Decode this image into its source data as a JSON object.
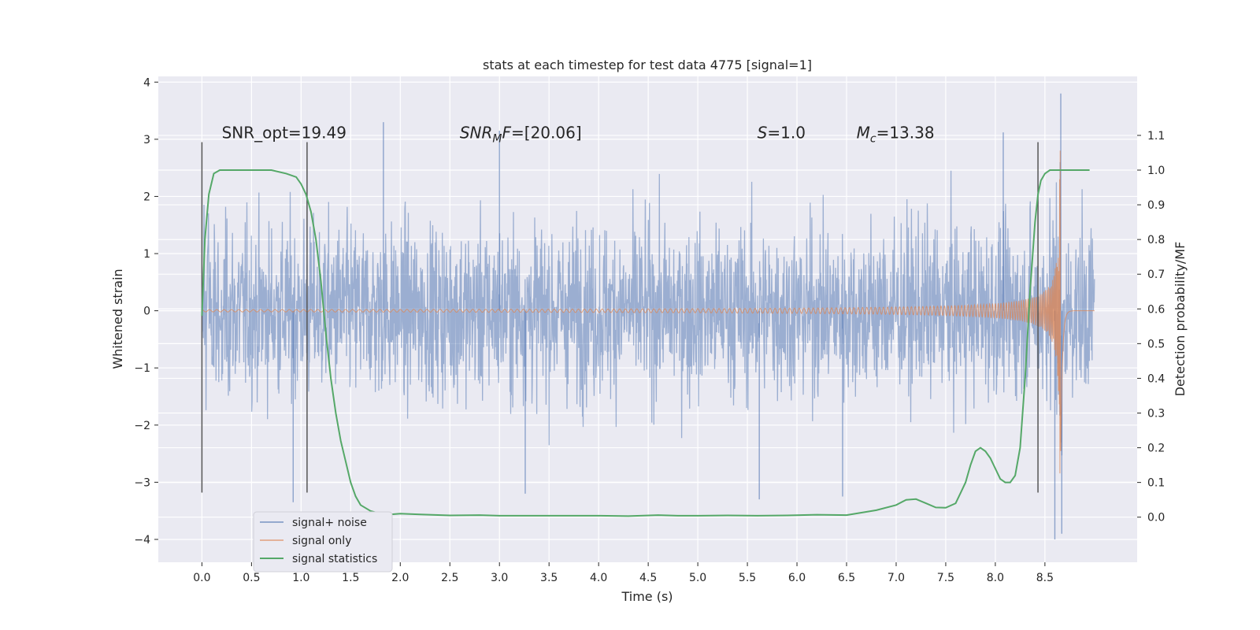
{
  "chart_data": {
    "type": "line",
    "title": "stats at each timestep for test data 4775 [signal=1]",
    "xlabel": "Time (s)",
    "ylabel": "Whitened strain",
    "y2label": "Detection probability/MF",
    "xlim": [
      -0.44,
      9.43
    ],
    "ylim": [
      -4.4,
      4.1
    ],
    "y2lim": [
      -0.13,
      1.27
    ],
    "x_ticks": [
      0.0,
      0.5,
      1.0,
      1.5,
      2.0,
      2.5,
      3.0,
      3.5,
      4.0,
      4.5,
      5.0,
      5.5,
      6.0,
      6.5,
      7.0,
      7.5,
      8.0,
      8.5
    ],
    "x_tick_labels": [
      "0.0",
      "0.5",
      "1.0",
      "1.5",
      "2.0",
      "2.5",
      "3.0",
      "3.5",
      "4.0",
      "4.5",
      "5.0",
      "5.5",
      "6.0",
      "6.5",
      "7.0",
      "7.5",
      "8.0",
      "8.5"
    ],
    "y_ticks": [
      -4,
      -3,
      -2,
      -1,
      0,
      1,
      2,
      3,
      4
    ],
    "y_tick_labels": [
      "−4",
      "−3",
      "−2",
      "−1",
      "0",
      "1",
      "2",
      "3",
      "4"
    ],
    "y2_ticks": [
      0.0,
      0.1,
      0.2,
      0.3,
      0.4,
      0.5,
      0.6,
      0.7,
      0.8,
      0.9,
      1.0,
      1.1
    ],
    "y2_tick_labels": [
      "0.0",
      "0.1",
      "0.2",
      "0.3",
      "0.4",
      "0.5",
      "0.6",
      "0.7",
      "0.8",
      "0.9",
      "1.0",
      "1.1"
    ],
    "annotations": [
      {
        "name": "snr-opt",
        "text": "SNR_opt=19.49",
        "x": 0.2,
        "y": 3.02
      },
      {
        "name": "snr-mf",
        "text": "SNR_MF=[20.06]",
        "main": "SNR",
        "sub": "M",
        "rest": "F=[20.06]",
        "x": 2.6,
        "y": 3.02
      },
      {
        "name": "s-value",
        "text": "S=1.0",
        "main": "S",
        "rest": "=1.0",
        "x": 5.6,
        "y": 3.02
      },
      {
        "name": "chirp-mass",
        "text": "Mc=13.38",
        "main": "M",
        "sub": "c",
        "rest": "=13.38",
        "x": 6.6,
        "y": 3.02
      }
    ],
    "vlines": [
      {
        "x": 0.0,
        "ymin": -3.18,
        "ymax": 2.95
      },
      {
        "x": 1.06,
        "ymin": -3.18,
        "ymax": 2.95
      },
      {
        "x": 8.43,
        "ymin": -3.18,
        "ymax": 2.95
      }
    ],
    "series": [
      {
        "name": "signal+ noise",
        "color": "#4c72b0",
        "t_range": [
          0.0,
          9.0
        ],
        "samples": 2600,
        "sigma": 0.75,
        "peaks": [
          {
            "t": 0.92,
            "y": -3.35
          },
          {
            "t": 1.83,
            "y": 3.3
          },
          {
            "t": 3.0,
            "y": 3.15
          },
          {
            "t": 3.26,
            "y": -3.2
          },
          {
            "t": 5.62,
            "y": -3.3
          },
          {
            "t": 6.46,
            "y": -3.25
          },
          {
            "t": 8.08,
            "y": 3.12
          },
          {
            "t": 8.6,
            "y": -4.0
          },
          {
            "t": 8.66,
            "y": 3.8
          },
          {
            "t": 8.67,
            "y": -3.9
          }
        ]
      },
      {
        "name": "signal only",
        "color": "#dd8452",
        "t_range": [
          0.0,
          9.0
        ],
        "merger_time": 8.66,
        "peak_amplitude": 2.85
      },
      {
        "name": "signal statistics",
        "color": "#55a868",
        "x": [
          0.0,
          0.03,
          0.07,
          0.12,
          0.18,
          0.25,
          0.35,
          0.5,
          0.7,
          0.85,
          0.95,
          1.0,
          1.05,
          1.1,
          1.15,
          1.2,
          1.25,
          1.3,
          1.35,
          1.4,
          1.45,
          1.5,
          1.55,
          1.6,
          1.7,
          1.8,
          1.9,
          2.0,
          2.2,
          2.5,
          2.8,
          3.0,
          3.3,
          3.6,
          4.0,
          4.3,
          4.6,
          4.8,
          5.0,
          5.3,
          5.6,
          5.9,
          6.2,
          6.5,
          6.8,
          7.0,
          7.1,
          7.2,
          7.3,
          7.4,
          7.5,
          7.6,
          7.65,
          7.7,
          7.75,
          7.8,
          7.85,
          7.9,
          7.95,
          8.0,
          8.05,
          8.1,
          8.15,
          8.2,
          8.25,
          8.3,
          8.35,
          8.4,
          8.43,
          8.46,
          8.5,
          8.55,
          8.6,
          8.7,
          8.8,
          8.9,
          8.95
        ],
        "values": [
          0.58,
          0.8,
          0.93,
          0.99,
          1.0,
          1.0,
          1.0,
          1.0,
          1.0,
          0.99,
          0.98,
          0.96,
          0.93,
          0.88,
          0.8,
          0.68,
          0.53,
          0.4,
          0.3,
          0.22,
          0.16,
          0.1,
          0.06,
          0.035,
          0.018,
          0.01,
          0.008,
          0.01,
          0.008,
          0.005,
          0.006,
          0.004,
          0.004,
          0.004,
          0.004,
          0.003,
          0.006,
          0.004,
          0.004,
          0.005,
          0.004,
          0.005,
          0.007,
          0.006,
          0.02,
          0.035,
          0.05,
          0.052,
          0.04,
          0.028,
          0.027,
          0.04,
          0.07,
          0.1,
          0.15,
          0.19,
          0.2,
          0.19,
          0.17,
          0.14,
          0.11,
          0.1,
          0.1,
          0.12,
          0.2,
          0.4,
          0.65,
          0.85,
          0.93,
          0.97,
          0.99,
          1.0,
          1.0,
          1.0,
          1.0,
          1.0,
          1.0
        ]
      }
    ],
    "legend": {
      "position": "lower-left",
      "entries": [
        "signal+ noise",
        "signal only",
        "signal statistics"
      ]
    }
  }
}
